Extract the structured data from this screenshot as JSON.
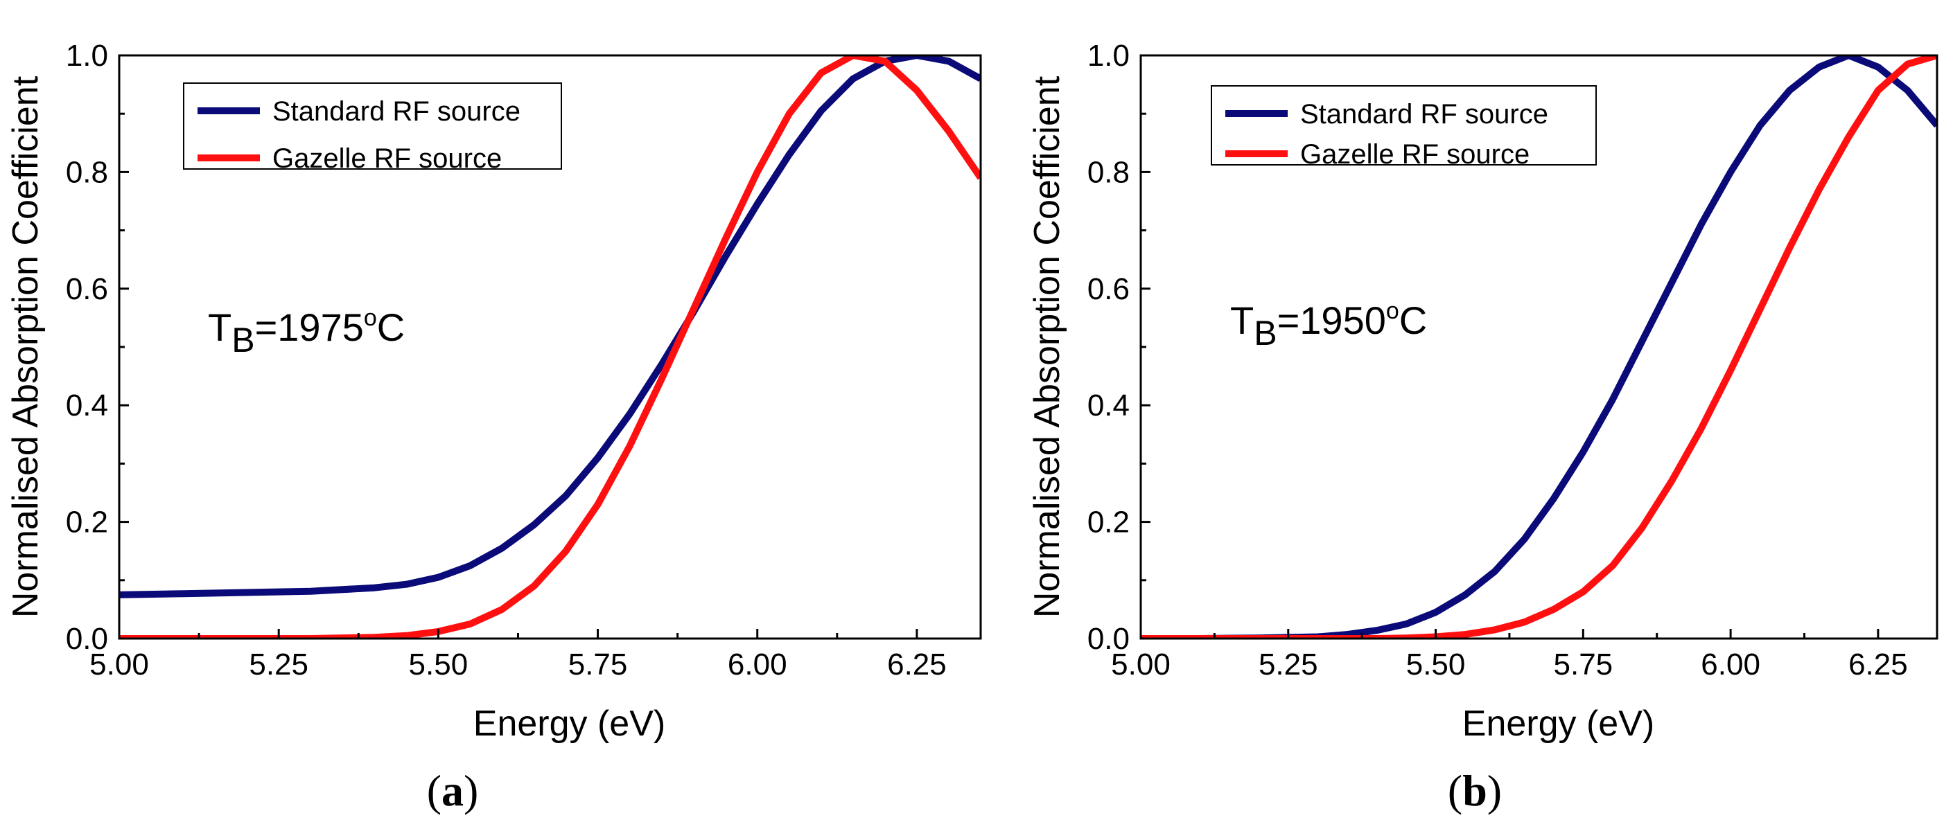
{
  "chart_data": [
    {
      "type": "line",
      "panel_label": {
        "open": "(",
        "letter": "a",
        "close": ")"
      },
      "xlabel": "Energy (eV)",
      "ylabel": "Normalised Absorption Coefficient",
      "xlim": [
        5.0,
        6.35
      ],
      "ylim": [
        0.0,
        1.0
      ],
      "xticks": [
        "5.00",
        "5.25",
        "5.50",
        "5.75",
        "6.00",
        "6.25"
      ],
      "yticks": [
        "0.0",
        "0.2",
        "0.4",
        "0.6",
        "0.8",
        "1.0"
      ],
      "grid": false,
      "legend_position": "top-left",
      "annotation": {
        "prefix": "T",
        "subscript": "B",
        "value": "=1975",
        "degree": "o",
        "unit": "C"
      },
      "series": [
        {
          "name": "Standard RF source",
          "color": "#0a0a78",
          "x": [
            5.0,
            5.1,
            5.2,
            5.3,
            5.4,
            5.45,
            5.5,
            5.55,
            5.6,
            5.65,
            5.7,
            5.75,
            5.8,
            5.85,
            5.9,
            5.95,
            6.0,
            6.05,
            6.1,
            6.15,
            6.2,
            6.25,
            6.3,
            6.35
          ],
          "y": [
            0.075,
            0.077,
            0.079,
            0.081,
            0.087,
            0.093,
            0.105,
            0.125,
            0.155,
            0.195,
            0.245,
            0.31,
            0.385,
            0.47,
            0.56,
            0.655,
            0.745,
            0.83,
            0.905,
            0.96,
            0.99,
            1.0,
            0.99,
            0.96
          ]
        },
        {
          "name": "Gazelle RF source",
          "color": "#ff1010",
          "x": [
            5.0,
            5.1,
            5.2,
            5.3,
            5.4,
            5.45,
            5.5,
            5.55,
            5.6,
            5.65,
            5.7,
            5.75,
            5.8,
            5.85,
            5.9,
            5.95,
            6.0,
            6.05,
            6.1,
            6.15,
            6.2,
            6.25,
            6.3,
            6.35
          ],
          "y": [
            0.0,
            0.0,
            0.0,
            0.0,
            0.002,
            0.005,
            0.012,
            0.025,
            0.05,
            0.09,
            0.15,
            0.23,
            0.33,
            0.445,
            0.565,
            0.685,
            0.8,
            0.9,
            0.97,
            1.0,
            0.99,
            0.94,
            0.87,
            0.79
          ]
        }
      ]
    },
    {
      "type": "line",
      "panel_label": {
        "open": "(",
        "letter": "b",
        "close": ")"
      },
      "xlabel": "Energy (eV)",
      "ylabel": "Normalised Absorption Coefficient",
      "xlim": [
        5.0,
        6.35
      ],
      "ylim": [
        0.0,
        1.0
      ],
      "xticks": [
        "5.00",
        "5.25",
        "5.50",
        "5.75",
        "6.00",
        "6.25"
      ],
      "yticks": [
        "0.0",
        "0.2",
        "0.4",
        "0.6",
        "0.8",
        "1.0"
      ],
      "grid": false,
      "legend_position": "top-left",
      "annotation": {
        "prefix": "T",
        "subscript": "B",
        "value": "=1950",
        "degree": "o",
        "unit": "C"
      },
      "series": [
        {
          "name": "Standard RF source",
          "color": "#0a0a78",
          "x": [
            5.0,
            5.1,
            5.2,
            5.3,
            5.35,
            5.4,
            5.45,
            5.5,
            5.55,
            5.6,
            5.65,
            5.7,
            5.75,
            5.8,
            5.85,
            5.9,
            5.95,
            6.0,
            6.05,
            6.1,
            6.15,
            6.2,
            6.25,
            6.3,
            6.35
          ],
          "y": [
            0.0,
            0.0,
            0.001,
            0.003,
            0.007,
            0.014,
            0.025,
            0.045,
            0.075,
            0.115,
            0.17,
            0.24,
            0.32,
            0.41,
            0.51,
            0.61,
            0.71,
            0.8,
            0.88,
            0.94,
            0.98,
            1.0,
            0.98,
            0.94,
            0.88
          ]
        },
        {
          "name": "Gazelle RF source",
          "color": "#ff1010",
          "x": [
            5.0,
            5.1,
            5.2,
            5.3,
            5.4,
            5.45,
            5.5,
            5.55,
            5.6,
            5.65,
            5.7,
            5.75,
            5.8,
            5.85,
            5.9,
            5.95,
            6.0,
            6.05,
            6.1,
            6.15,
            6.2,
            6.25,
            6.3,
            6.35
          ],
          "y": [
            0.0,
            0.0,
            0.0,
            0.0,
            0.0,
            0.001,
            0.003,
            0.007,
            0.015,
            0.028,
            0.05,
            0.08,
            0.125,
            0.19,
            0.27,
            0.36,
            0.46,
            0.565,
            0.67,
            0.77,
            0.86,
            0.94,
            0.985,
            1.0
          ]
        }
      ]
    }
  ]
}
